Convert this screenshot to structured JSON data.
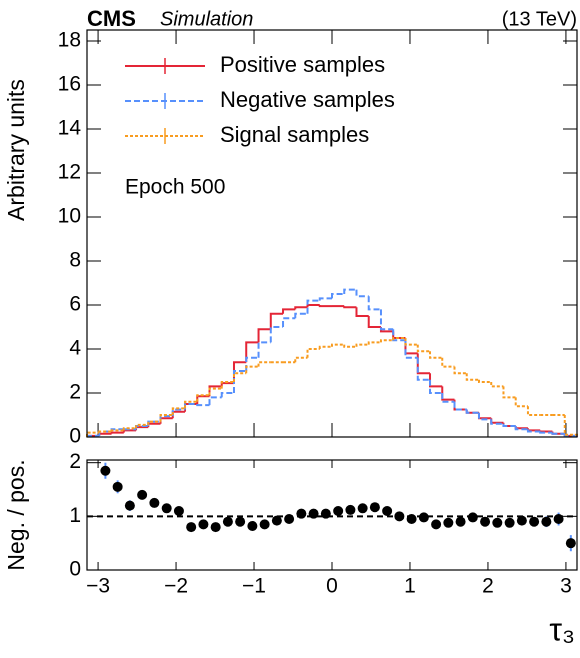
{
  "header": {
    "experiment": "CMS",
    "status": "Simulation",
    "energy": "(13 TeV)"
  },
  "chart_data": [
    {
      "type": "histogram",
      "y_label": "Arbitrary units",
      "annotation": "Epoch 500",
      "bins": [
        -3.142,
        -2.985,
        -2.827,
        -2.67,
        -2.513,
        -2.356,
        -2.199,
        -2.042,
        -1.885,
        -1.728,
        -1.571,
        -1.414,
        -1.257,
        -1.1,
        -0.942,
        -0.785,
        -0.628,
        -0.471,
        -0.314,
        -0.157,
        0,
        0.157,
        0.314,
        0.471,
        0.628,
        0.785,
        0.942,
        1.1,
        1.257,
        1.414,
        1.571,
        1.728,
        1.885,
        2.042,
        2.199,
        2.356,
        2.513,
        2.67,
        2.827,
        2.985,
        3.142
      ],
      "series": [
        {
          "name": "Positive samples",
          "color": "#e42536",
          "linestyle": "solid",
          "values": [
            0.05,
            0.15,
            0.2,
            0.3,
            0.45,
            0.6,
            0.85,
            1.15,
            1.5,
            1.85,
            2.3,
            2.45,
            3.4,
            4.3,
            4.9,
            5.6,
            5.8,
            5.9,
            6.0,
            5.95,
            5.95,
            5.9,
            5.5,
            5.0,
            4.8,
            4.5,
            3.8,
            2.9,
            2.3,
            1.7,
            1.25,
            1.1,
            0.85,
            0.65,
            0.5,
            0.4,
            0.3,
            0.25,
            0.15,
            0.05
          ]
        },
        {
          "name": "Negative samples",
          "color": "#5790fc",
          "linestyle": "dashed",
          "values": [
            0.05,
            0.25,
            0.35,
            0.35,
            0.5,
            0.7,
            0.95,
            1.25,
            1.5,
            1.45,
            1.8,
            2.0,
            3.0,
            3.6,
            4.3,
            5.0,
            5.4,
            5.6,
            6.2,
            6.3,
            6.5,
            6.7,
            6.4,
            5.8,
            4.9,
            4.4,
            3.6,
            2.6,
            2.0,
            1.6,
            1.25,
            1.1,
            0.8,
            0.6,
            0.5,
            0.35,
            0.25,
            0.2,
            0.15,
            0.05
          ]
        },
        {
          "name": "Signal samples",
          "color": "#f89c20",
          "linestyle": "dotted",
          "values": [
            0.2,
            0.25,
            0.3,
            0.4,
            0.55,
            0.7,
            1.0,
            1.3,
            1.6,
            1.9,
            2.2,
            2.5,
            2.9,
            3.2,
            3.4,
            3.4,
            3.4,
            3.6,
            4.0,
            4.1,
            4.2,
            4.1,
            4.2,
            4.3,
            4.4,
            4.5,
            4.2,
            3.9,
            3.6,
            3.2,
            2.9,
            2.6,
            2.5,
            2.3,
            1.8,
            1.4,
            1.0,
            1.0,
            1.0,
            0.1
          ]
        }
      ],
      "xlim": [
        -3.142,
        3.142
      ],
      "ylim": [
        0,
        18.5
      ],
      "yticks": [
        0,
        2,
        4,
        6,
        8,
        10,
        12,
        14,
        16,
        18
      ],
      "legend": "upper left"
    },
    {
      "type": "scatter",
      "x_label": "τ₃",
      "y_label": "Neg. / pos.",
      "x": [
        -3.063,
        -2.906,
        -2.749,
        -2.592,
        -2.435,
        -2.278,
        -2.12,
        -1.963,
        -1.806,
        -1.649,
        -1.492,
        -1.335,
        -1.178,
        -1.021,
        -0.864,
        -0.707,
        -0.55,
        -0.393,
        -0.236,
        -0.079,
        0.079,
        0.236,
        0.393,
        0.55,
        0.707,
        0.864,
        1.021,
        1.178,
        1.335,
        1.492,
        1.649,
        1.806,
        1.963,
        2.12,
        2.278,
        2.435,
        2.592,
        2.749,
        2.906,
        3.063
      ],
      "values": [
        null,
        1.85,
        1.55,
        1.2,
        1.4,
        1.25,
        1.15,
        1.1,
        0.8,
        0.85,
        0.8,
        0.9,
        0.9,
        0.82,
        0.85,
        0.92,
        0.95,
        1.05,
        1.05,
        1.05,
        1.1,
        1.12,
        1.15,
        1.17,
        1.1,
        1.0,
        0.95,
        0.98,
        0.85,
        0.88,
        0.9,
        0.98,
        0.9,
        0.88,
        0.88,
        0.92,
        0.9,
        0.9,
        0.95,
        0.5
      ],
      "errors": [
        null,
        0.15,
        0.12,
        0.1,
        0.08,
        0.07,
        0.06,
        0.05,
        0.04,
        0.04,
        0.04,
        0.03,
        0.03,
        0.03,
        0.03,
        0.02,
        0.02,
        0.02,
        0.02,
        0.02,
        0.02,
        0.02,
        0.02,
        0.02,
        0.02,
        0.02,
        0.03,
        0.03,
        0.03,
        0.04,
        0.04,
        0.04,
        0.05,
        0.05,
        0.06,
        0.07,
        0.08,
        0.1,
        0.12,
        0.15
      ],
      "color": "#000000",
      "error_color": "#5790fc",
      "hline": 1,
      "xlim": [
        -3.142,
        3.142
      ],
      "ylim": [
        0,
        2.05
      ],
      "xticks": [
        {
          "value": -3,
          "label": "−3"
        },
        {
          "value": -2,
          "label": "−2"
        },
        {
          "value": -1,
          "label": "−1"
        },
        0,
        1,
        2,
        3
      ],
      "yticks": [
        0,
        1,
        2
      ]
    }
  ]
}
